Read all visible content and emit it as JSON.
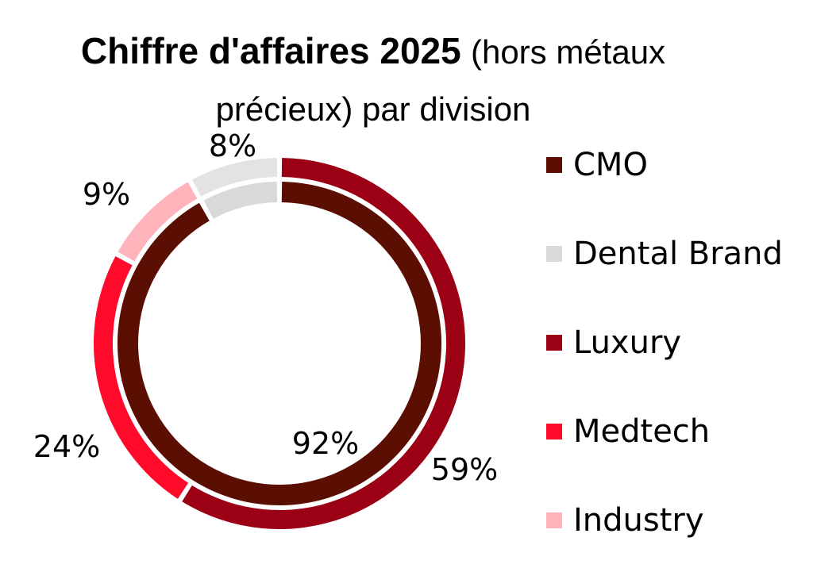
{
  "chart_data": {
    "type": "pie",
    "subtype": "double-donut",
    "title_bold": "Chiffre d'affaires 2025",
    "title_rest_line1": "(hors métaux",
    "title_rest_line2": "précieux) par division",
    "rings": [
      {
        "name": "inner",
        "slices": [
          {
            "label": "CMO",
            "value": 92,
            "display": "92%",
            "color": "#5a0f02"
          },
          {
            "label": "Dental Brand",
            "value": 8,
            "display": "",
            "color": "#d9d9d9"
          }
        ]
      },
      {
        "name": "outer",
        "slices": [
          {
            "label": "Luxury",
            "value": 59,
            "display": "59%",
            "color": "#9b0015"
          },
          {
            "label": "Medtech",
            "value": 24,
            "display": "24%",
            "color": "#ff0a2a"
          },
          {
            "label": "Industry",
            "value": 9,
            "display": "9%",
            "color": "#ffb3bb"
          },
          {
            "label": "Dental Brand",
            "value": 8,
            "display": "8%",
            "color": "#e3e3e3"
          }
        ]
      }
    ],
    "legend": {
      "placement": "right",
      "entries": [
        {
          "label": "CMO",
          "color": "#5a0f02"
        },
        {
          "label": "Dental Brand",
          "color": "#d9d9d9"
        },
        {
          "label": "Luxury",
          "color": "#9b0015"
        },
        {
          "label": "Medtech",
          "color": "#ff0a2a"
        },
        {
          "label": "Industry",
          "color": "#ffb3bb"
        }
      ]
    }
  }
}
